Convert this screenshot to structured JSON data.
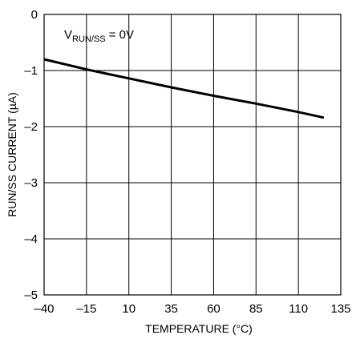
{
  "chart_data": {
    "type": "line",
    "xlabel": "TEMPERATURE (°C)",
    "ylabel": "RUN/SS CURRENT (µA)",
    "xlim": [
      -40,
      135
    ],
    "ylim": [
      -5,
      0
    ],
    "x_ticks": [
      -40,
      -15,
      10,
      35,
      60,
      85,
      110,
      135
    ],
    "x_tick_labels": [
      "–40",
      "–15",
      "10",
      "35",
      "60",
      "85",
      "110",
      "135"
    ],
    "y_ticks": [
      0,
      -1,
      -2,
      -3,
      -4,
      -5
    ],
    "y_tick_labels": [
      "0",
      "–1",
      "–2",
      "–3",
      "–4",
      "–5"
    ],
    "grid": true,
    "annotation": {
      "prefix": "V",
      "subscript": "RUN/SS",
      "suffix": " = 0V"
    },
    "series": [
      {
        "x": [
          -40,
          -15,
          10,
          35,
          60,
          85,
          110,
          125
        ],
        "y": [
          -0.8,
          -0.98,
          -1.14,
          -1.3,
          -1.45,
          -1.59,
          -1.74,
          -1.84
        ]
      }
    ],
    "line_color": "#000000"
  }
}
